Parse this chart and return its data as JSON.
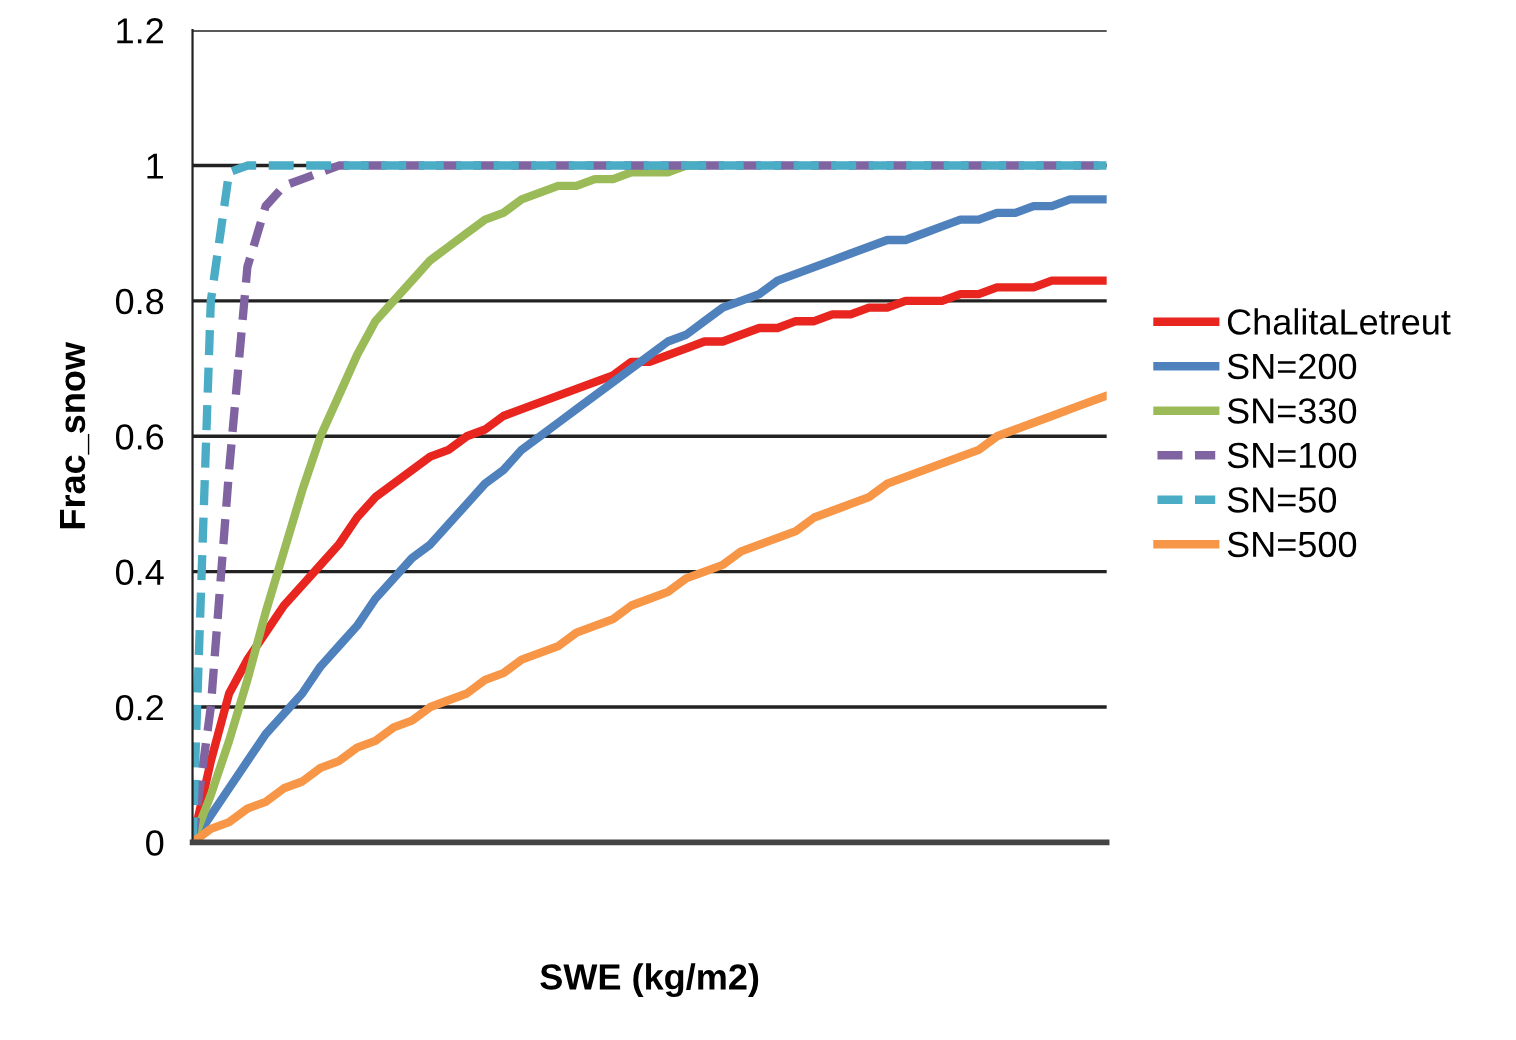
{
  "chart_data": {
    "type": "line",
    "xlabel": "SWE (kg/m2)",
    "ylabel": "Frac_snow",
    "categories": [
      null,
      null,
      null,
      null,
      null,
      null,
      null,
      null,
      null,
      null,
      null,
      null,
      null,
      null,
      null,
      null,
      null,
      null,
      null,
      null,
      null,
      null,
      null,
      null,
      null,
      null,
      null,
      null,
      null,
      null,
      null,
      null,
      null,
      null,
      null,
      null,
      null,
      null,
      null,
      null,
      null,
      null,
      null,
      null,
      null,
      null,
      null,
      null,
      null,
      null,
      null
    ],
    "ylim": [
      0,
      1.2
    ],
    "yticks": [
      0,
      0.2,
      0.4,
      0.6,
      0.8,
      1,
      1.2
    ],
    "grid": "y",
    "legend": "right",
    "marker": "none",
    "series": [
      {
        "name": "ChalitaLetreut",
        "color": "#e8251f",
        "line_style": "solid",
        "values": [
          0,
          0.12,
          0.22,
          0.27,
          0.31,
          0.35,
          0.38,
          0.41,
          0.44,
          0.48,
          0.51,
          0.53,
          0.55,
          0.57,
          0.58,
          0.6,
          0.61,
          0.63,
          0.64,
          0.65,
          0.66,
          0.67,
          0.68,
          0.69,
          0.71,
          0.71,
          0.72,
          0.73,
          0.74,
          0.74,
          0.75,
          0.76,
          0.76,
          0.77,
          0.77,
          0.78,
          0.78,
          0.79,
          0.79,
          0.8,
          0.8,
          0.8,
          0.81,
          0.81,
          0.82,
          0.82,
          0.82,
          0.83,
          0.83,
          0.83,
          0.83
        ]
      },
      {
        "name": "SN=200",
        "color": "#4f81bd",
        "line_style": "solid",
        "values": [
          0,
          0.04,
          0.08,
          0.12,
          0.16,
          0.19,
          0.22,
          0.26,
          0.29,
          0.32,
          0.36,
          0.39,
          0.42,
          0.44,
          0.47,
          0.5,
          0.53,
          0.55,
          0.58,
          0.6,
          0.62,
          0.64,
          0.66,
          0.68,
          0.7,
          0.72,
          0.74,
          0.75,
          0.77,
          0.79,
          0.8,
          0.81,
          0.83,
          0.84,
          0.85,
          0.86,
          0.87,
          0.88,
          0.89,
          0.89,
          0.9,
          0.91,
          0.92,
          0.92,
          0.93,
          0.93,
          0.94,
          0.94,
          0.95,
          0.95,
          0.95
        ]
      },
      {
        "name": "SN=330",
        "color": "#9bbb59",
        "line_style": "solid",
        "values": [
          0,
          0.07,
          0.15,
          0.24,
          0.34,
          0.43,
          0.52,
          0.6,
          0.66,
          0.72,
          0.77,
          0.8,
          0.83,
          0.86,
          0.88,
          0.9,
          0.92,
          0.93,
          0.95,
          0.96,
          0.97,
          0.97,
          0.98,
          0.98,
          0.99,
          0.99,
          0.99,
          1,
          1,
          null,
          null,
          null,
          null,
          null,
          null,
          null,
          null,
          null,
          null,
          null,
          null,
          null,
          null,
          null,
          null,
          null,
          null,
          null,
          null,
          null,
          null
        ]
      },
      {
        "name": "SN=100",
        "color": "#8064a2",
        "line_style": "dashed",
        "values": [
          0,
          0.2,
          0.55,
          0.85,
          0.94,
          0.97,
          0.98,
          0.99,
          1,
          1,
          1,
          1,
          1,
          1,
          1,
          1,
          1,
          1,
          1,
          1,
          1,
          1,
          1,
          1,
          1,
          1,
          1,
          1,
          1,
          1,
          1,
          1,
          1,
          1,
          1,
          1,
          1,
          1,
          1,
          1,
          1,
          1,
          1,
          1,
          1,
          1,
          1,
          1,
          1,
          1,
          1
        ]
      },
      {
        "name": "SN=50",
        "color": "#4bacc6",
        "line_style": "dashed",
        "values": [
          0,
          0.8,
          0.99,
          1,
          1,
          1,
          1,
          1,
          1,
          1,
          1,
          1,
          1,
          1,
          1,
          1,
          1,
          1,
          1,
          1,
          1,
          1,
          1,
          1,
          1,
          1,
          1,
          1,
          1,
          1,
          1,
          1,
          1,
          1,
          1,
          1,
          1,
          1,
          1,
          1,
          1,
          1,
          1,
          1,
          1,
          1,
          1,
          1,
          1,
          1,
          1
        ]
      },
      {
        "name": "SN=500",
        "color": "#f79646",
        "line_style": "solid",
        "values": [
          0,
          0.02,
          0.03,
          0.05,
          0.06,
          0.08,
          0.09,
          0.11,
          0.12,
          0.14,
          0.15,
          0.17,
          0.18,
          0.2,
          0.21,
          0.22,
          0.24,
          0.25,
          0.27,
          0.28,
          0.29,
          0.31,
          0.32,
          0.33,
          0.35,
          0.36,
          0.37,
          0.39,
          0.4,
          0.41,
          0.43,
          0.44,
          0.45,
          0.46,
          0.48,
          0.49,
          0.5,
          0.51,
          0.53,
          0.54,
          0.55,
          0.56,
          0.57,
          0.58,
          0.6,
          0.61,
          0.62,
          0.63,
          0.64,
          0.65,
          0.66
        ]
      }
    ]
  }
}
